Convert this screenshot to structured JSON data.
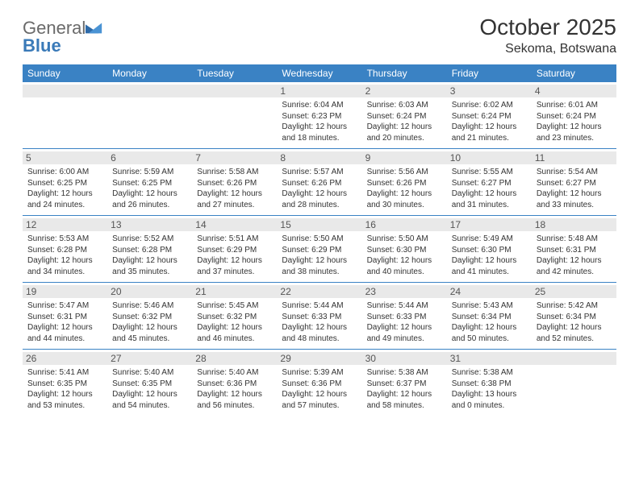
{
  "logo": {
    "word1": "General",
    "word2": "Blue"
  },
  "title": "October 2025",
  "location": "Sekoma, Botswana",
  "colors": {
    "header_bg": "#3a82c4",
    "header_text": "#ffffff",
    "daynum_bg": "#e9e9e9",
    "daynum_text": "#555555",
    "body_text": "#333333",
    "rule": "#3a82c4",
    "logo_gray": "#6a6a6a",
    "logo_blue": "#3a7ab8"
  },
  "dow": [
    "Sunday",
    "Monday",
    "Tuesday",
    "Wednesday",
    "Thursday",
    "Friday",
    "Saturday"
  ],
  "weeks": [
    [
      null,
      null,
      null,
      {
        "n": "1",
        "sr": "Sunrise: 6:04 AM",
        "ss": "Sunset: 6:23 PM",
        "d1": "Daylight: 12 hours",
        "d2": "and 18 minutes."
      },
      {
        "n": "2",
        "sr": "Sunrise: 6:03 AM",
        "ss": "Sunset: 6:24 PM",
        "d1": "Daylight: 12 hours",
        "d2": "and 20 minutes."
      },
      {
        "n": "3",
        "sr": "Sunrise: 6:02 AM",
        "ss": "Sunset: 6:24 PM",
        "d1": "Daylight: 12 hours",
        "d2": "and 21 minutes."
      },
      {
        "n": "4",
        "sr": "Sunrise: 6:01 AM",
        "ss": "Sunset: 6:24 PM",
        "d1": "Daylight: 12 hours",
        "d2": "and 23 minutes."
      }
    ],
    [
      {
        "n": "5",
        "sr": "Sunrise: 6:00 AM",
        "ss": "Sunset: 6:25 PM",
        "d1": "Daylight: 12 hours",
        "d2": "and 24 minutes."
      },
      {
        "n": "6",
        "sr": "Sunrise: 5:59 AM",
        "ss": "Sunset: 6:25 PM",
        "d1": "Daylight: 12 hours",
        "d2": "and 26 minutes."
      },
      {
        "n": "7",
        "sr": "Sunrise: 5:58 AM",
        "ss": "Sunset: 6:26 PM",
        "d1": "Daylight: 12 hours",
        "d2": "and 27 minutes."
      },
      {
        "n": "8",
        "sr": "Sunrise: 5:57 AM",
        "ss": "Sunset: 6:26 PM",
        "d1": "Daylight: 12 hours",
        "d2": "and 28 minutes."
      },
      {
        "n": "9",
        "sr": "Sunrise: 5:56 AM",
        "ss": "Sunset: 6:26 PM",
        "d1": "Daylight: 12 hours",
        "d2": "and 30 minutes."
      },
      {
        "n": "10",
        "sr": "Sunrise: 5:55 AM",
        "ss": "Sunset: 6:27 PM",
        "d1": "Daylight: 12 hours",
        "d2": "and 31 minutes."
      },
      {
        "n": "11",
        "sr": "Sunrise: 5:54 AM",
        "ss": "Sunset: 6:27 PM",
        "d1": "Daylight: 12 hours",
        "d2": "and 33 minutes."
      }
    ],
    [
      {
        "n": "12",
        "sr": "Sunrise: 5:53 AM",
        "ss": "Sunset: 6:28 PM",
        "d1": "Daylight: 12 hours",
        "d2": "and 34 minutes."
      },
      {
        "n": "13",
        "sr": "Sunrise: 5:52 AM",
        "ss": "Sunset: 6:28 PM",
        "d1": "Daylight: 12 hours",
        "d2": "and 35 minutes."
      },
      {
        "n": "14",
        "sr": "Sunrise: 5:51 AM",
        "ss": "Sunset: 6:29 PM",
        "d1": "Daylight: 12 hours",
        "d2": "and 37 minutes."
      },
      {
        "n": "15",
        "sr": "Sunrise: 5:50 AM",
        "ss": "Sunset: 6:29 PM",
        "d1": "Daylight: 12 hours",
        "d2": "and 38 minutes."
      },
      {
        "n": "16",
        "sr": "Sunrise: 5:50 AM",
        "ss": "Sunset: 6:30 PM",
        "d1": "Daylight: 12 hours",
        "d2": "and 40 minutes."
      },
      {
        "n": "17",
        "sr": "Sunrise: 5:49 AM",
        "ss": "Sunset: 6:30 PM",
        "d1": "Daylight: 12 hours",
        "d2": "and 41 minutes."
      },
      {
        "n": "18",
        "sr": "Sunrise: 5:48 AM",
        "ss": "Sunset: 6:31 PM",
        "d1": "Daylight: 12 hours",
        "d2": "and 42 minutes."
      }
    ],
    [
      {
        "n": "19",
        "sr": "Sunrise: 5:47 AM",
        "ss": "Sunset: 6:31 PM",
        "d1": "Daylight: 12 hours",
        "d2": "and 44 minutes."
      },
      {
        "n": "20",
        "sr": "Sunrise: 5:46 AM",
        "ss": "Sunset: 6:32 PM",
        "d1": "Daylight: 12 hours",
        "d2": "and 45 minutes."
      },
      {
        "n": "21",
        "sr": "Sunrise: 5:45 AM",
        "ss": "Sunset: 6:32 PM",
        "d1": "Daylight: 12 hours",
        "d2": "and 46 minutes."
      },
      {
        "n": "22",
        "sr": "Sunrise: 5:44 AM",
        "ss": "Sunset: 6:33 PM",
        "d1": "Daylight: 12 hours",
        "d2": "and 48 minutes."
      },
      {
        "n": "23",
        "sr": "Sunrise: 5:44 AM",
        "ss": "Sunset: 6:33 PM",
        "d1": "Daylight: 12 hours",
        "d2": "and 49 minutes."
      },
      {
        "n": "24",
        "sr": "Sunrise: 5:43 AM",
        "ss": "Sunset: 6:34 PM",
        "d1": "Daylight: 12 hours",
        "d2": "and 50 minutes."
      },
      {
        "n": "25",
        "sr": "Sunrise: 5:42 AM",
        "ss": "Sunset: 6:34 PM",
        "d1": "Daylight: 12 hours",
        "d2": "and 52 minutes."
      }
    ],
    [
      {
        "n": "26",
        "sr": "Sunrise: 5:41 AM",
        "ss": "Sunset: 6:35 PM",
        "d1": "Daylight: 12 hours",
        "d2": "and 53 minutes."
      },
      {
        "n": "27",
        "sr": "Sunrise: 5:40 AM",
        "ss": "Sunset: 6:35 PM",
        "d1": "Daylight: 12 hours",
        "d2": "and 54 minutes."
      },
      {
        "n": "28",
        "sr": "Sunrise: 5:40 AM",
        "ss": "Sunset: 6:36 PM",
        "d1": "Daylight: 12 hours",
        "d2": "and 56 minutes."
      },
      {
        "n": "29",
        "sr": "Sunrise: 5:39 AM",
        "ss": "Sunset: 6:36 PM",
        "d1": "Daylight: 12 hours",
        "d2": "and 57 minutes."
      },
      {
        "n": "30",
        "sr": "Sunrise: 5:38 AM",
        "ss": "Sunset: 6:37 PM",
        "d1": "Daylight: 12 hours",
        "d2": "and 58 minutes."
      },
      {
        "n": "31",
        "sr": "Sunrise: 5:38 AM",
        "ss": "Sunset: 6:38 PM",
        "d1": "Daylight: 13 hours",
        "d2": "and 0 minutes."
      },
      null
    ]
  ]
}
